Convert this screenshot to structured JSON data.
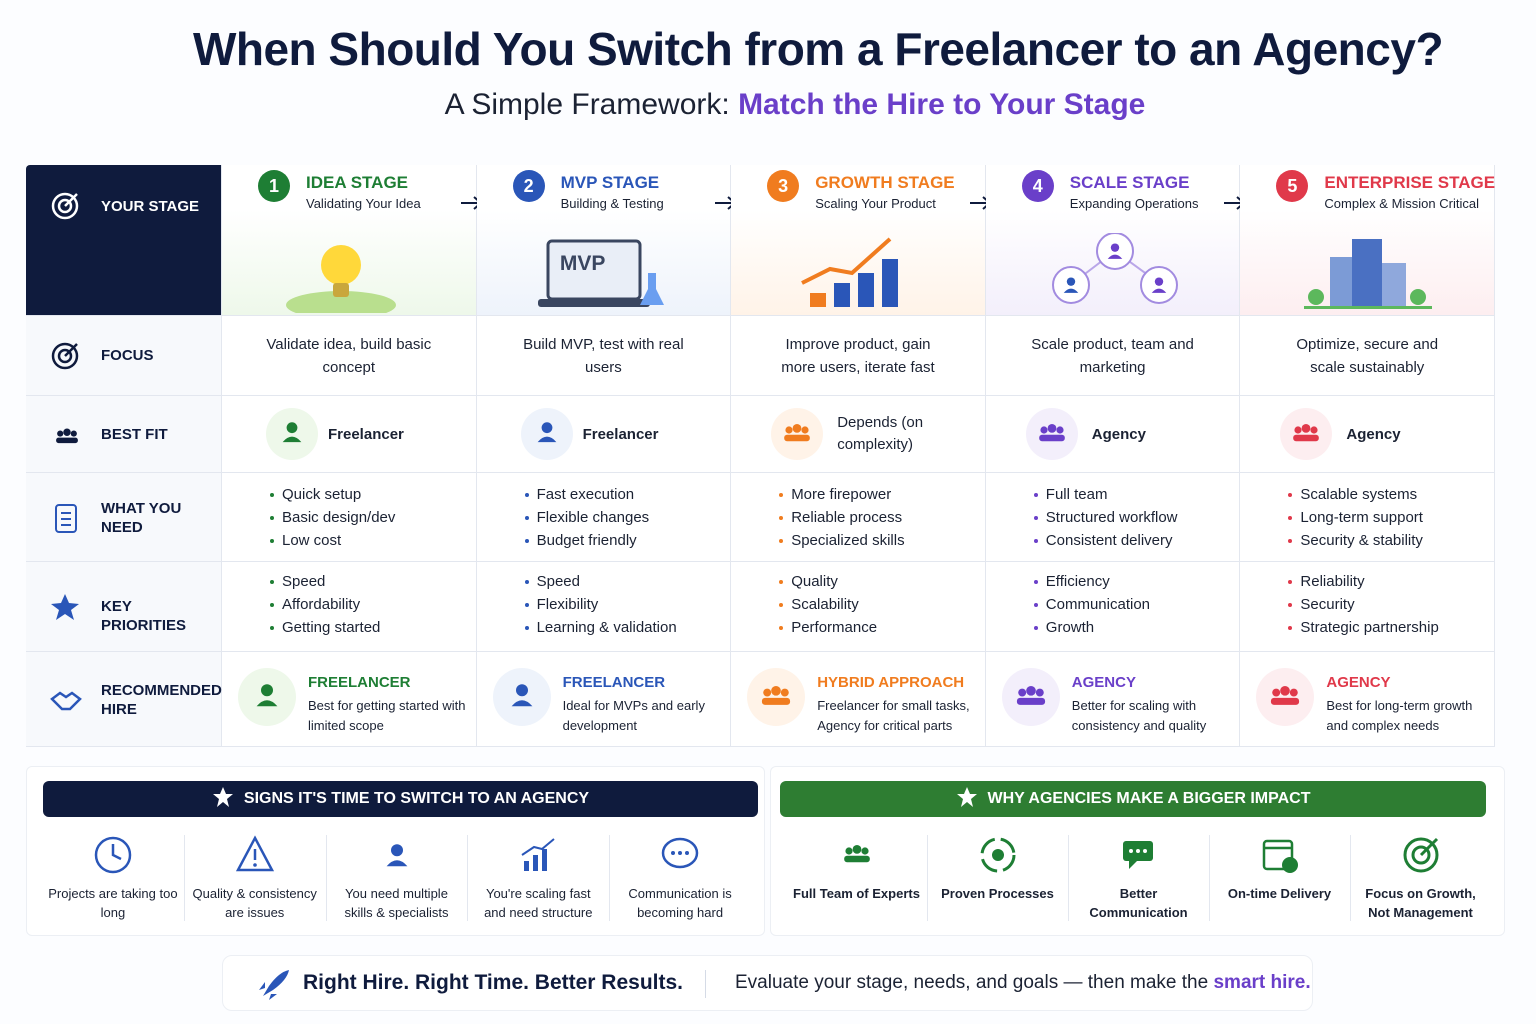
{
  "title": "When Should You Switch from a Freelancer to an Agency?",
  "subtitle": {
    "prefix": "A Simple Framework:",
    "highlight": "Match the Hire to Your Stage"
  },
  "row_labels": {
    "your_stage": "YOUR STAGE",
    "focus": "FOCUS",
    "best_fit": "BEST FIT",
    "what_you_need": "WHAT YOU NEED",
    "key_priorities": "KEY PRIORITIES",
    "recommended_hire": "RECOMMENDED HIRE"
  },
  "stages": [
    {
      "number": "1",
      "name": "IDEA STAGE",
      "subtitle": "Validating Your Idea",
      "focus": "Validate idea, build basic concept",
      "best_fit": "Freelancer",
      "needs": [
        "Quick setup",
        "Basic design/dev",
        "Low cost"
      ],
      "priorities": [
        "Speed",
        "Affordability",
        "Getting started"
      ],
      "rec_title": "FREELANCER",
      "rec_desc": "Best for getting started with limited scope"
    },
    {
      "number": "2",
      "name": "MVP STAGE",
      "subtitle": "Building & Testing",
      "illustration_label": "MVP",
      "focus": "Build MVP, test with real users",
      "best_fit": "Freelancer",
      "needs": [
        "Fast execution",
        "Flexible changes",
        "Budget friendly"
      ],
      "priorities": [
        "Speed",
        "Flexibility",
        "Learning & validation"
      ],
      "rec_title": "FREELANCER",
      "rec_desc": "Ideal for MVPs and early development"
    },
    {
      "number": "3",
      "name": "GROWTH STAGE",
      "subtitle": "Scaling Your Product",
      "focus": "Improve product, gain more users, iterate fast",
      "best_fit": "Depends (on complexity)",
      "needs": [
        "More firepower",
        "Reliable process",
        "Specialized skills"
      ],
      "priorities": [
        "Quality",
        "Scalability",
        "Performance"
      ],
      "rec_title": "HYBRID APPROACH",
      "rec_desc": "Freelancer for small tasks, Agency for critical parts"
    },
    {
      "number": "4",
      "name": "SCALE STAGE",
      "subtitle": "Expanding Operations",
      "focus": "Scale product, team and marketing",
      "best_fit": "Agency",
      "needs": [
        "Full team",
        "Structured workflow",
        "Consistent delivery"
      ],
      "priorities": [
        "Efficiency",
        "Communication",
        "Growth"
      ],
      "rec_title": "AGENCY",
      "rec_desc": "Better for scaling with consistency and quality"
    },
    {
      "number": "5",
      "name": "ENTERPRISE STAGE",
      "subtitle": "Complex & Mission Critical",
      "focus": "Optimize, secure and scale sustainably",
      "best_fit": "Agency",
      "needs": [
        "Scalable systems",
        "Long-term support",
        "Security & stability"
      ],
      "priorities": [
        "Reliability",
        "Security",
        "Strategic partnership"
      ],
      "rec_title": "AGENCY",
      "rec_desc": "Best for long-term growth and complex needs"
    }
  ],
  "signs": {
    "title": "SIGNS IT'S TIME TO SWITCH TO AN AGENCY",
    "items": [
      "Projects are taking too long",
      "Quality & consistency are issues",
      "You need multiple skills & specialists",
      "You're scaling fast and need structure",
      "Communication is becoming hard"
    ]
  },
  "impact": {
    "title": "WHY AGENCIES MAKE A BIGGER IMPACT",
    "items": [
      "Full Team of Experts",
      "Proven Processes",
      "Better Communication",
      "On-time Delivery",
      "Focus on Growth, Not Management"
    ]
  },
  "footer": {
    "slogan": "Right Hire. Right Time. Better Results.",
    "prefix": "Evaluate your stage, needs, and goals — then make the",
    "highlight": "smart hire."
  }
}
